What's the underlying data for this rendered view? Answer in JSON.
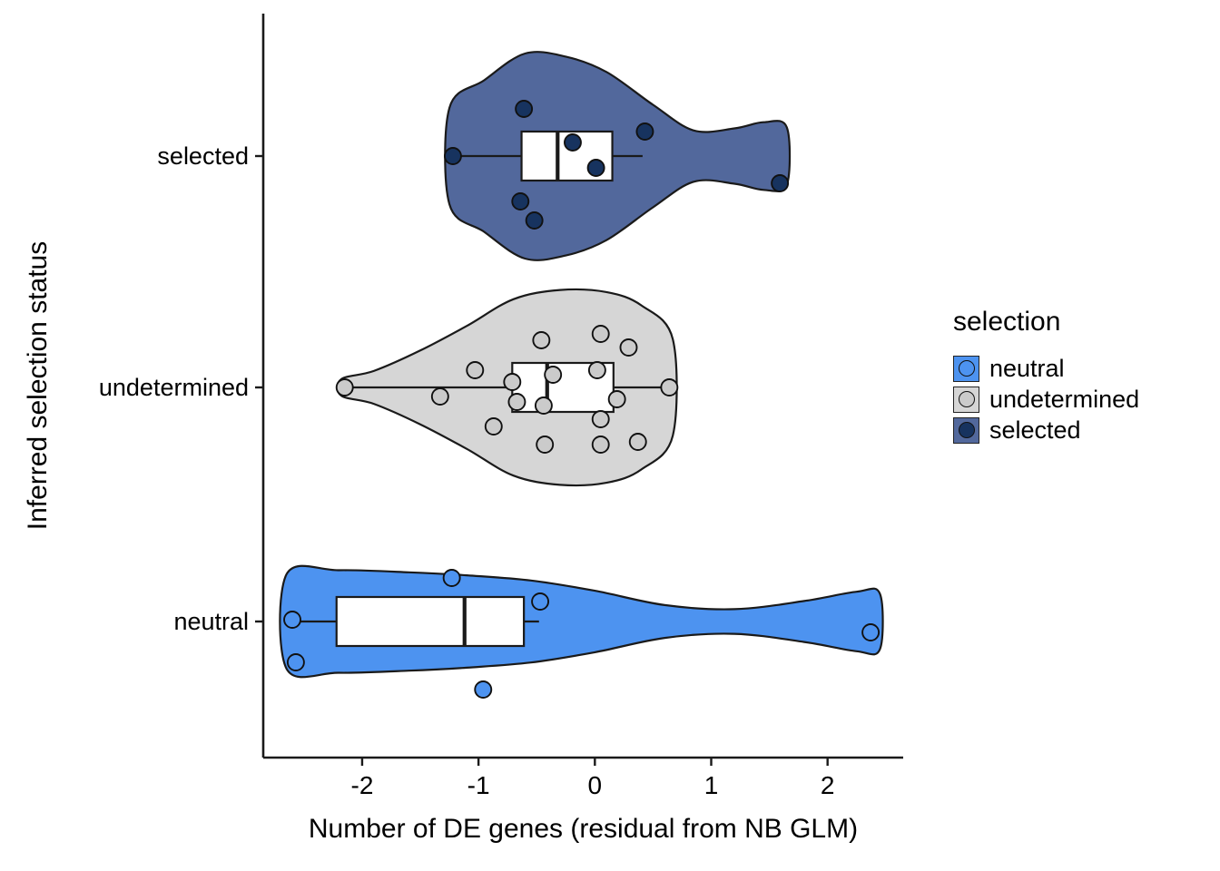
{
  "figure": {
    "background": "#ffffff",
    "axis_color": "#1a1a1a",
    "box_fill": "#ffffff"
  },
  "chart_data": {
    "type": "violin",
    "title": "",
    "xlabel": "Number of DE genes (residual from NB GLM)",
    "ylabel": "Inferred selection status",
    "xlim": [
      -2.85,
      2.65
    ],
    "x_ticks": [
      -2,
      -1,
      0,
      1,
      2
    ],
    "categories": [
      "selected",
      "undetermined",
      "neutral"
    ],
    "grid": false,
    "legend_position": "right",
    "legend": {
      "title": "selection",
      "items": [
        {
          "label": "neutral",
          "fill": "#4D93F0",
          "point": "#4D93F0"
        },
        {
          "label": "undetermined",
          "fill": "#D6D6D6",
          "point": "#CBCBCB"
        },
        {
          "label": "selected",
          "fill": "#52689C",
          "point": "#17335F"
        }
      ]
    },
    "groups": [
      {
        "name": "selected",
        "fill": "#52689C",
        "point_color": "#17335F",
        "box": {
          "whisker_low": -1.22,
          "q1": -0.63,
          "median": -0.32,
          "q3": 0.15,
          "whisker_high": 0.41
        },
        "violin": [
          [
            -1.25,
            0.47
          ],
          [
            -0.95,
            0.74
          ],
          [
            -0.6,
            1.0
          ],
          [
            -0.25,
            0.97
          ],
          [
            0.1,
            0.82
          ],
          [
            0.5,
            0.5
          ],
          [
            0.85,
            0.25
          ],
          [
            1.2,
            0.27
          ],
          [
            1.45,
            0.33
          ],
          [
            1.65,
            0.28
          ]
        ],
        "points": [
          [
            -0.61,
            -52
          ],
          [
            -0.19,
            -15
          ],
          [
            0.43,
            -27
          ],
          [
            0.01,
            13
          ],
          [
            -1.22,
            0
          ],
          [
            -0.64,
            50
          ],
          [
            -0.52,
            71
          ],
          [
            1.59,
            30
          ]
        ]
      },
      {
        "name": "undetermined",
        "fill": "#D6D6D6",
        "point_color": "#CBCBCB",
        "box": {
          "whisker_low": -2.15,
          "q1": -0.71,
          "median": -0.41,
          "q3": 0.16,
          "whisker_high": 0.64
        },
        "violin": [
          [
            -2.18,
            0.08
          ],
          [
            -1.9,
            0.16
          ],
          [
            -1.5,
            0.36
          ],
          [
            -1.1,
            0.6
          ],
          [
            -0.7,
            0.86
          ],
          [
            -0.3,
            0.95
          ],
          [
            0.1,
            0.93
          ],
          [
            0.4,
            0.8
          ],
          [
            0.67,
            0.47
          ]
        ],
        "points": [
          [
            -0.46,
            -52
          ],
          [
            0.05,
            -59
          ],
          [
            0.29,
            -44
          ],
          [
            -1.03,
            -19
          ],
          [
            -0.71,
            -6
          ],
          [
            -0.36,
            -14
          ],
          [
            0.02,
            -19
          ],
          [
            -1.33,
            10
          ],
          [
            -2.15,
            0
          ],
          [
            -0.67,
            16
          ],
          [
            -0.44,
            20
          ],
          [
            -0.87,
            43
          ],
          [
            0.05,
            35
          ],
          [
            0.64,
            0
          ],
          [
            0.19,
            13
          ],
          [
            -0.43,
            63
          ],
          [
            0.05,
            63
          ],
          [
            0.37,
            60
          ]
        ]
      },
      {
        "name": "neutral",
        "fill": "#4D93F0",
        "point_color": "#4D93F0",
        "box": {
          "whisker_low": -2.6,
          "q1": -2.22,
          "median": -1.12,
          "q3": -0.61,
          "whisker_high": -0.48
        },
        "violin": [
          [
            -2.65,
            0.46
          ],
          [
            -2.2,
            0.5
          ],
          [
            -1.6,
            0.48
          ],
          [
            -1.1,
            0.45
          ],
          [
            -0.55,
            0.4
          ],
          [
            0.0,
            0.3
          ],
          [
            0.6,
            0.16
          ],
          [
            1.2,
            0.12
          ],
          [
            1.8,
            0.2
          ],
          [
            2.25,
            0.29
          ],
          [
            2.45,
            0.27
          ]
        ],
        "points": [
          [
            -1.23,
            -48
          ],
          [
            -0.47,
            -22
          ],
          [
            -2.6,
            -2
          ],
          [
            -2.57,
            45
          ],
          [
            -0.96,
            75
          ],
          [
            2.37,
            12
          ]
        ]
      }
    ]
  }
}
